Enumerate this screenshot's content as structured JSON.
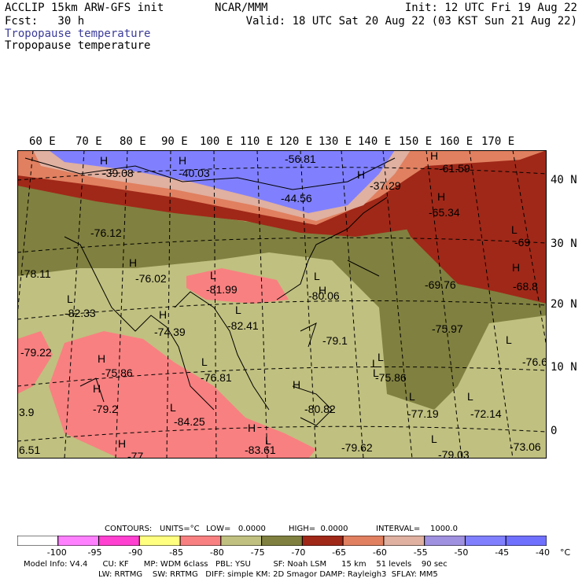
{
  "header": {
    "model": "ACCLIP 15km ARW-GFS init",
    "fcst": "Fcst:   30 h",
    "org": "NCAR/MMM",
    "init": "Init: 12 UTC Fri 19 Aug 22",
    "valid": "Valid: 18 UTC Sat 20 Aug 22 (03 KST Sun 21 Aug 22)",
    "field1": "Tropopause temperature",
    "field2": "Tropopause temperature",
    "field1_color": "#3b3b9a"
  },
  "lon_labels": [
    "60 E",
    "70 E",
    "80 E",
    "90 E",
    "100 E",
    "110 E",
    "120 E",
    "130 E",
    "140 E",
    "150 E",
    "160 E",
    "170 E"
  ],
  "lat_labels": [
    "40 N",
    "30 N",
    "20 N",
    "10 N",
    "0"
  ],
  "map_labels": [
    {
      "t": "H"
    },
    {
      "t": "-39.08"
    },
    {
      "t": "H"
    },
    {
      "t": "-40.03"
    },
    {
      "t": "-56.81"
    },
    {
      "t": "H"
    },
    {
      "t": "-37.29"
    },
    {
      "t": "-44.56"
    },
    {
      "t": "H"
    },
    {
      "t": "-61.59"
    },
    {
      "t": "H"
    },
    {
      "t": "-65.34"
    },
    {
      "t": "-76.12"
    },
    {
      "t": "L"
    },
    {
      "t": "-69"
    },
    {
      "t": "H"
    },
    {
      "t": "-78.11"
    },
    {
      "t": "-76.02"
    },
    {
      "t": "L"
    },
    {
      "t": "-81.99"
    },
    {
      "t": "L"
    },
    {
      "t": "H"
    },
    {
      "t": "-80.06"
    },
    {
      "t": "-69.76"
    },
    {
      "t": "H"
    },
    {
      "t": "-68.8"
    },
    {
      "t": "L"
    },
    {
      "t": "-82.33"
    },
    {
      "t": "H"
    },
    {
      "t": "L"
    },
    {
      "t": "-74.39"
    },
    {
      "t": "-82.41"
    },
    {
      "t": "-79.1"
    },
    {
      "t": "L"
    },
    {
      "t": "-75.97"
    },
    {
      "t": "L"
    },
    {
      "t": "-79.22"
    },
    {
      "t": "H"
    },
    {
      "t": "-75.86"
    },
    {
      "t": "L"
    },
    {
      "t": "-76.81"
    },
    {
      "t": "L"
    },
    {
      "t": "-75.86"
    },
    {
      "t": "L"
    },
    {
      "t": "-76.62"
    },
    {
      "t": "H"
    },
    {
      "t": "-79.2"
    },
    {
      "t": "H"
    },
    {
      "t": "-80.82"
    },
    {
      "t": "L"
    },
    {
      "t": "-77.19"
    },
    {
      "t": "L"
    },
    {
      "t": "-72.14"
    },
    {
      "t": "3.9"
    },
    {
      "t": "L"
    },
    {
      "t": "-84.25"
    },
    {
      "t": "H"
    },
    {
      "t": "H"
    },
    {
      "t": "L"
    },
    {
      "t": "-83.61"
    },
    {
      "t": "-79.62"
    },
    {
      "t": "L"
    },
    {
      "t": "-79.03"
    },
    {
      "t": "-73.06"
    },
    {
      "t": "6.51"
    },
    {
      "t": "-77"
    }
  ],
  "contour_info": {
    "contours": "CONTOURS:",
    "units": "UNITS=°C",
    "low": "LOW=   0.0000",
    "high": "HIGH=  0.0000",
    "interval": "INTERVAL=    1000.0"
  },
  "colorbar": {
    "colors": [
      "#ffffff",
      "#ff80ff",
      "#ff40d0",
      "#ffff80",
      "#f88080",
      "#c0c080",
      "#808040",
      "#a02818",
      "#e08060",
      "#e0b0a0",
      "#a090e0",
      "#8080ff",
      "#7070ff"
    ],
    "labels": [
      "-100",
      "-95",
      "-90",
      "-85",
      "-80",
      "-75",
      "-70",
      "-65",
      "-60",
      "-55",
      "-50",
      "-45",
      "-40",
      "°C"
    ]
  },
  "footer": {
    "line1": "Model Info: V4.4      CU: KF      MP: WDM 6class   PBL: YSU         SF: Noah LSM      15 km    51 levels    90 sec",
    "line2": "LW: RRTMG    SW: RRTMG   DIFF: simple KM: 2D Smagor DAMP: Rayleigh3  SFLAY: MM5"
  }
}
